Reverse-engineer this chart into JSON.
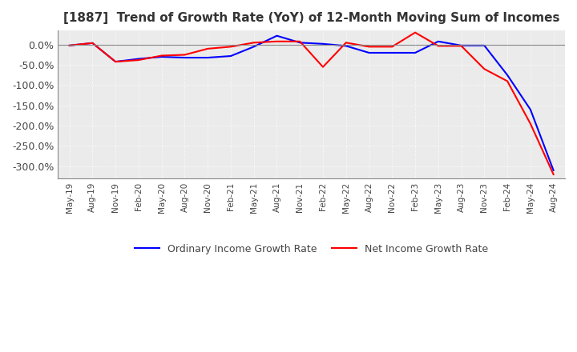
{
  "title": "[1887]  Trend of Growth Rate (YoY) of 12-Month Moving Sum of Incomes",
  "ylim": [
    -330,
    35
  ],
  "yticks": [
    0,
    -50,
    -100,
    -150,
    -200,
    -250,
    -300
  ],
  "ytick_labels": [
    "0.0%",
    "-50.0%",
    "-100.0%",
    "-150.0%",
    "-200.0%",
    "-250.0%",
    "-300.0%"
  ],
  "legend": [
    "Ordinary Income Growth Rate",
    "Net Income Growth Rate"
  ],
  "line_colors": [
    "#0000FF",
    "#FF0000"
  ],
  "background_color": "#FFFFFF",
  "plot_bg_color": "#EBEBEB",
  "x_labels": [
    "May-19",
    "Aug-19",
    "Nov-19",
    "Feb-20",
    "May-20",
    "Aug-20",
    "Nov-20",
    "Feb-21",
    "May-21",
    "Aug-21",
    "Nov-21",
    "Feb-22",
    "May-22",
    "Aug-22",
    "Nov-22",
    "Feb-23",
    "May-23",
    "Aug-23",
    "Nov-23",
    "Feb-24",
    "May-24",
    "Aug-24"
  ],
  "ordinary_income": [
    -2.0,
    4.0,
    -42.0,
    -35.0,
    -30.0,
    -32.0,
    -32.0,
    -28.0,
    -5.0,
    22.0,
    5.0,
    2.0,
    -3.0,
    -20.0,
    -20.0,
    -20.0,
    8.0,
    -2.0,
    -2.0,
    -75.0,
    -160.0,
    -310.0
  ],
  "net_income": [
    -2.0,
    4.0,
    -42.0,
    -38.0,
    -27.0,
    -25.0,
    -10.0,
    -5.0,
    5.0,
    8.0,
    8.0,
    -55.0,
    5.0,
    -5.0,
    -5.0,
    30.0,
    -3.0,
    -3.0,
    -60.0,
    -90.0,
    -195.0,
    -320.0
  ]
}
